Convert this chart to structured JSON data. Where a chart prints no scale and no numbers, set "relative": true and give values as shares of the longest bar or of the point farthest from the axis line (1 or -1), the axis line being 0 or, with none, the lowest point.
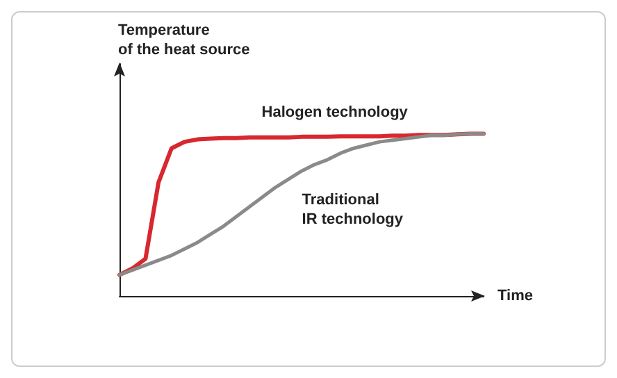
{
  "chart_data": {
    "type": "line",
    "relative": true,
    "xlabel": "Time",
    "ylabel": "Temperature\nof the heat source",
    "categories": [
      null,
      null,
      null,
      null,
      null,
      null,
      null,
      null,
      null,
      null,
      null,
      null,
      null,
      null,
      null,
      null,
      null,
      null,
      null,
      null,
      null,
      null,
      null,
      null,
      null,
      null,
      null,
      null,
      null
    ],
    "series": [
      {
        "name": "Halogen technology",
        "color": "#d7282f",
        "values": [
          0.13,
          0.17,
          0.23,
          0.7,
          0.91,
          0.95,
          0.965,
          0.97,
          0.973,
          0.973,
          0.977,
          0.977,
          0.977,
          0.977,
          0.981,
          0.981,
          0.981,
          0.984,
          0.984,
          0.984,
          0.984,
          0.988,
          0.988,
          0.992,
          0.992,
          0.992,
          0.996,
          1,
          1
        ]
      },
      {
        "name": "Traditional\nIR technology",
        "color": "#8a8a8a",
        "values": [
          0.13,
          0.16,
          0.19,
          0.22,
          0.25,
          0.29,
          0.33,
          0.38,
          0.43,
          0.49,
          0.55,
          0.61,
          0.67,
          0.72,
          0.77,
          0.81,
          0.84,
          0.88,
          0.91,
          0.93,
          0.95,
          0.96,
          0.97,
          0.98,
          0.99,
          0.99,
          0.996,
          1,
          1
        ]
      }
    ],
    "line_style": "solid",
    "grid": false,
    "legend": false
  }
}
